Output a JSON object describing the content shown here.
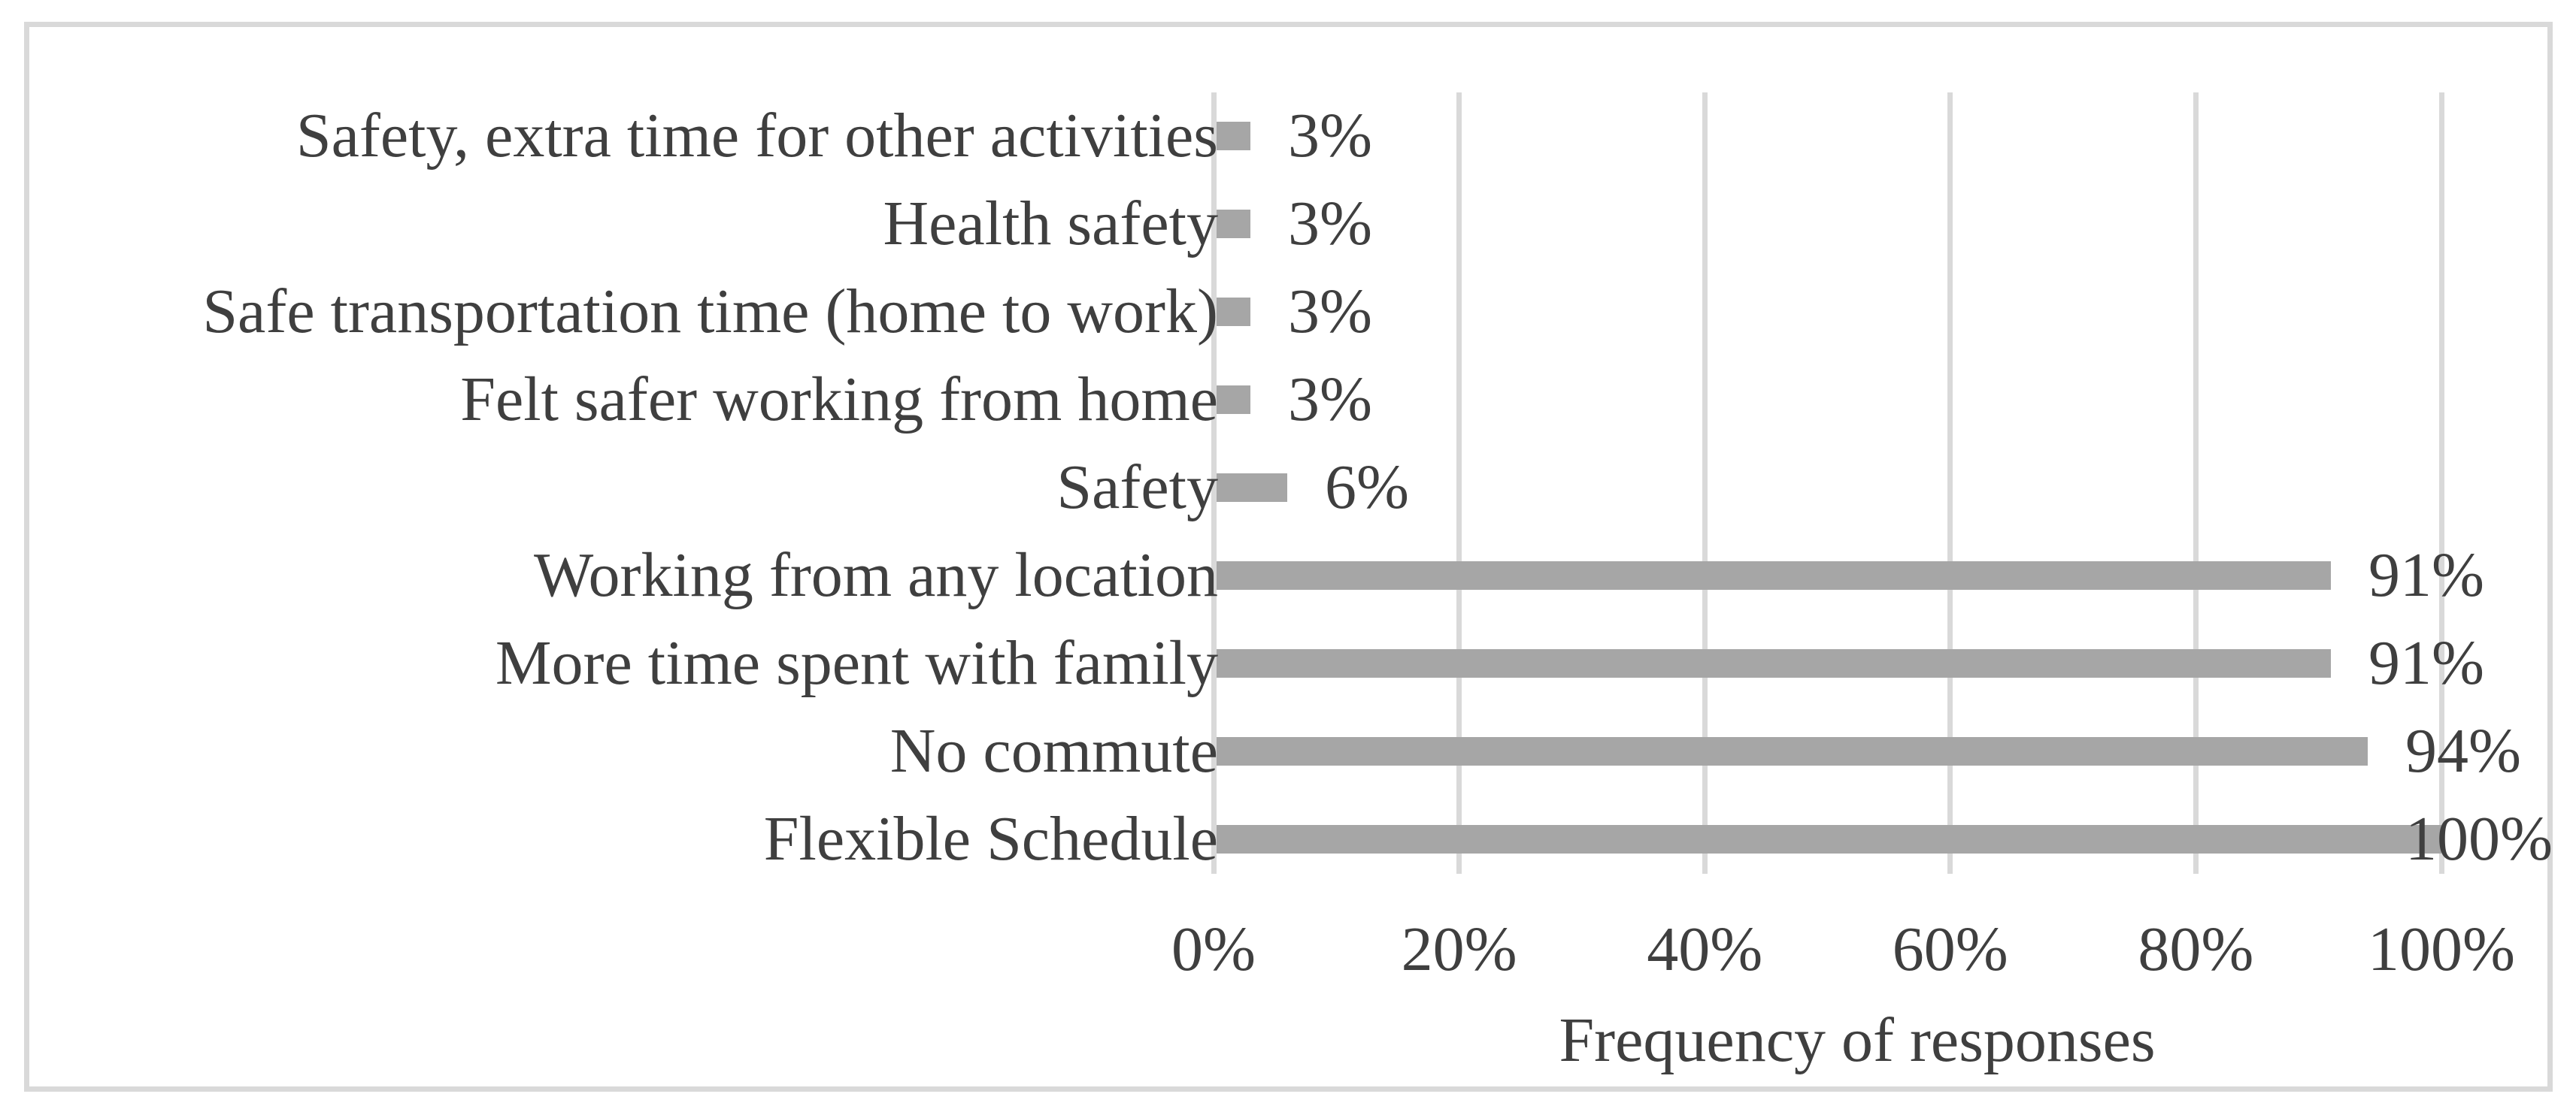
{
  "figure": {
    "background_color": "#ffffff",
    "frame_border_color": "#d9d9d9"
  },
  "chart_data": {
    "type": "bar",
    "orientation": "horizontal",
    "categories": [
      "Safety, extra time for other activities",
      "Health safety",
      "Safe transportation time (home to work)",
      "Felt safer working from home",
      "Safety",
      "Working from any location",
      "More time spent with family",
      "No commute",
      "Flexible Schedule"
    ],
    "values": [
      3,
      3,
      3,
      3,
      6,
      91,
      91,
      94,
      100
    ],
    "data_labels": [
      "3%",
      "3%",
      "3%",
      "3%",
      "6%",
      "91%",
      "91%",
      "94%",
      "100%"
    ],
    "x_ticks": [
      "0%",
      "20%",
      "40%",
      "60%",
      "80%",
      "100%"
    ],
    "x_tick_values": [
      0,
      20,
      40,
      60,
      80,
      100
    ],
    "xlim": [
      0,
      100
    ],
    "xlabel": "Frequency of responses",
    "title": "",
    "legend": false,
    "grid": true,
    "bar_color": "#a6a6a6",
    "gridline_color": "#d9d9d9",
    "axis_line_color": "#d9d9d9",
    "text_color": "#3f3f3f"
  }
}
